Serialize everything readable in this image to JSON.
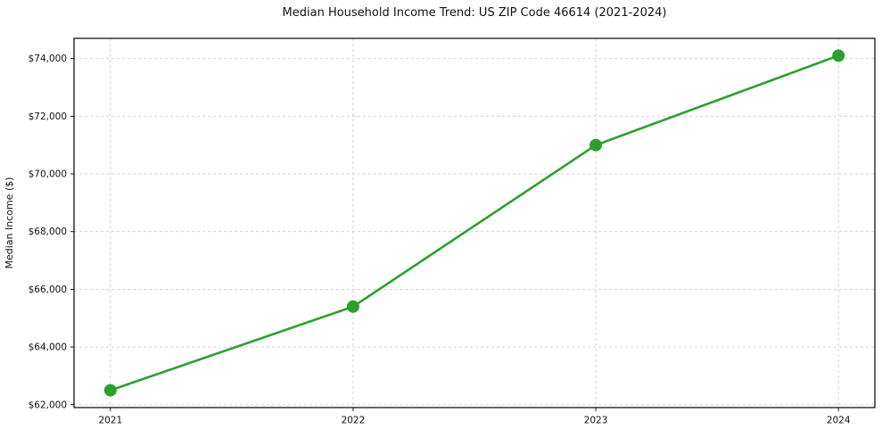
{
  "chart_data": {
    "type": "line",
    "title": "Median Household Income Trend: US ZIP Code 46614 (2021-2024)",
    "xlabel": "",
    "ylabel": "Median Income ($)",
    "x": [
      2021,
      2022,
      2023,
      2024
    ],
    "xtick_labels": [
      "2021",
      "2022",
      "2023",
      "2024"
    ],
    "values": [
      62500,
      65400,
      71000,
      74100
    ],
    "series_name": "Median Household Income",
    "yticks": [
      62000,
      64000,
      66000,
      68000,
      70000,
      72000,
      74000
    ],
    "ytick_labels": [
      "$62,000",
      "$64,000",
      "$66,000",
      "$68,000",
      "$70,000",
      "$72,000",
      "$74,000"
    ],
    "ylim": [
      61900,
      74700
    ],
    "xlim": [
      2020.85,
      2024.15
    ],
    "grid": "dashed-both-axes",
    "legend": "none",
    "line_color": "#2ca02c",
    "marker_color": "#2ca02c",
    "grid_color": "#cccccc",
    "spine_color": "#000000",
    "text_color": "#111111",
    "background_color": "#ffffff",
    "marker": "circle"
  }
}
